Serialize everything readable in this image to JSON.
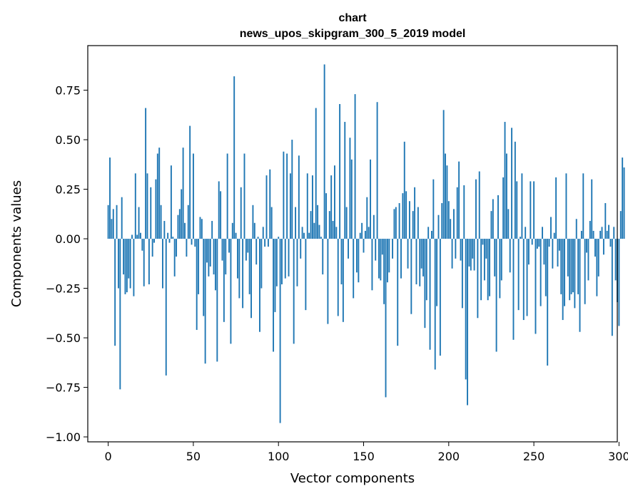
{
  "chart_data": {
    "type": "bar",
    "title_line1": "chart",
    "title_line2": "news_upos_skipgram_300_5_2019 model",
    "xlabel": "Vector components",
    "ylabel": "Components values",
    "xlim": [
      -12.0,
      299.0
    ],
    "ylim": [
      -1.025,
      0.975
    ],
    "xticks": [
      0,
      50,
      100,
      150,
      200,
      250,
      300
    ],
    "xtick_labels": [
      "0",
      "50",
      "100",
      "150",
      "200",
      "250",
      "300"
    ],
    "yticks": [
      -1.0,
      -0.75,
      -0.5,
      -0.25,
      0.0,
      0.25,
      0.5,
      0.75
    ],
    "ytick_labels": [
      "−1.00",
      "−0.75",
      "−0.50",
      "−0.25",
      "0.00",
      "0.25",
      "0.50",
      "0.75"
    ],
    "bar_color": "#1f77b4",
    "values": [
      0.17,
      0.41,
      0.1,
      0.15,
      -0.54,
      0.17,
      -0.25,
      -0.76,
      0.21,
      -0.18,
      -0.28,
      -0.27,
      -0.2,
      -0.25,
      0.02,
      -0.29,
      0.33,
      0.02,
      0.16,
      0.03,
      -0.06,
      -0.24,
      0.66,
      0.33,
      -0.23,
      0.26,
      -0.09,
      -0.02,
      0.3,
      0.43,
      0.46,
      0.17,
      -0.25,
      0.09,
      -0.69,
      0.03,
      -0.02,
      0.37,
      0.01,
      -0.19,
      -0.09,
      0.12,
      0.15,
      0.25,
      0.46,
      0.08,
      -0.09,
      0.17,
      0.57,
      -0.03,
      0.43,
      -0.04,
      -0.46,
      -0.28,
      0.11,
      0.1,
      -0.39,
      -0.63,
      -0.12,
      -0.19,
      -0.14,
      0.09,
      -0.18,
      -0.26,
      -0.62,
      0.29,
      0.24,
      -0.11,
      -0.42,
      -0.18,
      0.43,
      -0.07,
      -0.53,
      0.08,
      0.82,
      0.03,
      -0.2,
      -0.3,
      0.26,
      -0.35,
      0.43,
      -0.11,
      -0.07,
      -0.28,
      -0.4,
      0.17,
      0.08,
      -0.13,
      0.01,
      -0.47,
      -0.25,
      0.06,
      -0.04,
      0.32,
      -0.04,
      0.35,
      0.16,
      -0.57,
      -0.37,
      -0.24,
      0.01,
      -0.93,
      -0.23,
      0.44,
      -0.2,
      0.43,
      -0.19,
      0.33,
      0.5,
      -0.53,
      0.16,
      -0.24,
      0.42,
      -0.1,
      0.06,
      0.03,
      -0.36,
      0.33,
      0.03,
      0.14,
      0.32,
      0.08,
      0.66,
      0.17,
      0.07,
      0.01,
      -0.18,
      0.88,
      0.23,
      -0.43,
      0.14,
      0.32,
      0.09,
      0.37,
      0.06,
      -0.39,
      0.68,
      -0.23,
      -0.42,
      0.59,
      0.16,
      -0.1,
      0.51,
      0.4,
      -0.3,
      0.73,
      -0.17,
      -0.22,
      0.03,
      0.08,
      -0.07,
      0.04,
      0.21,
      0.06,
      0.4,
      -0.26,
      0.12,
      -0.11,
      0.69,
      -0.2,
      -0.21,
      -0.08,
      -0.33,
      -0.8,
      -0.22,
      -0.17,
      0.0,
      -0.1,
      0.15,
      0.16,
      -0.54,
      0.18,
      -0.2,
      0.23,
      0.49,
      0.24,
      -0.15,
      0.19,
      -0.38,
      0.14,
      0.26,
      -0.23,
      0.16,
      -0.24,
      -0.15,
      -0.19,
      -0.45,
      -0.31,
      0.06,
      -0.56,
      0.04,
      0.3,
      -0.66,
      -0.34,
      0.12,
      -0.59,
      0.18,
      0.65,
      0.43,
      0.37,
      0.19,
      0.1,
      -0.15,
      0.15,
      -0.1,
      0.26,
      0.39,
      -0.11,
      -0.35,
      0.27,
      -0.71,
      -0.84,
      -0.14,
      -0.16,
      -0.1,
      -0.16,
      0.3,
      -0.4,
      0.34,
      -0.31,
      -0.03,
      -0.21,
      -0.1,
      -0.31,
      -0.29,
      0.14,
      0.2,
      -0.19,
      -0.57,
      0.22,
      -0.3,
      -0.21,
      0.31,
      0.59,
      0.43,
      0.15,
      -0.17,
      0.56,
      -0.51,
      0.49,
      0.29,
      -0.36,
      0.01,
      0.33,
      -0.41,
      0.06,
      -0.39,
      -0.13,
      0.29,
      -0.03,
      0.29,
      -0.48,
      -0.05,
      -0.04,
      -0.34,
      0.06,
      -0.13,
      -0.29,
      -0.64,
      -0.04,
      0.11,
      -0.15,
      0.03,
      0.31,
      -0.14,
      -0.06,
      -0.28,
      -0.41,
      -0.34,
      0.33,
      -0.19,
      -0.31,
      -0.28,
      -0.27,
      -0.35,
      0.1,
      -0.28,
      -0.47,
      0.04,
      0.33,
      -0.33,
      -0.07,
      -0.21,
      0.09,
      0.3,
      0.04,
      -0.09,
      -0.29,
      -0.19,
      0.04,
      0.06,
      -0.08,
      0.18,
      0.04,
      0.07,
      -0.04,
      -0.49,
      0.06,
      -0.21,
      -0.32,
      -0.44,
      0.14,
      0.41,
      0.36
    ]
  }
}
